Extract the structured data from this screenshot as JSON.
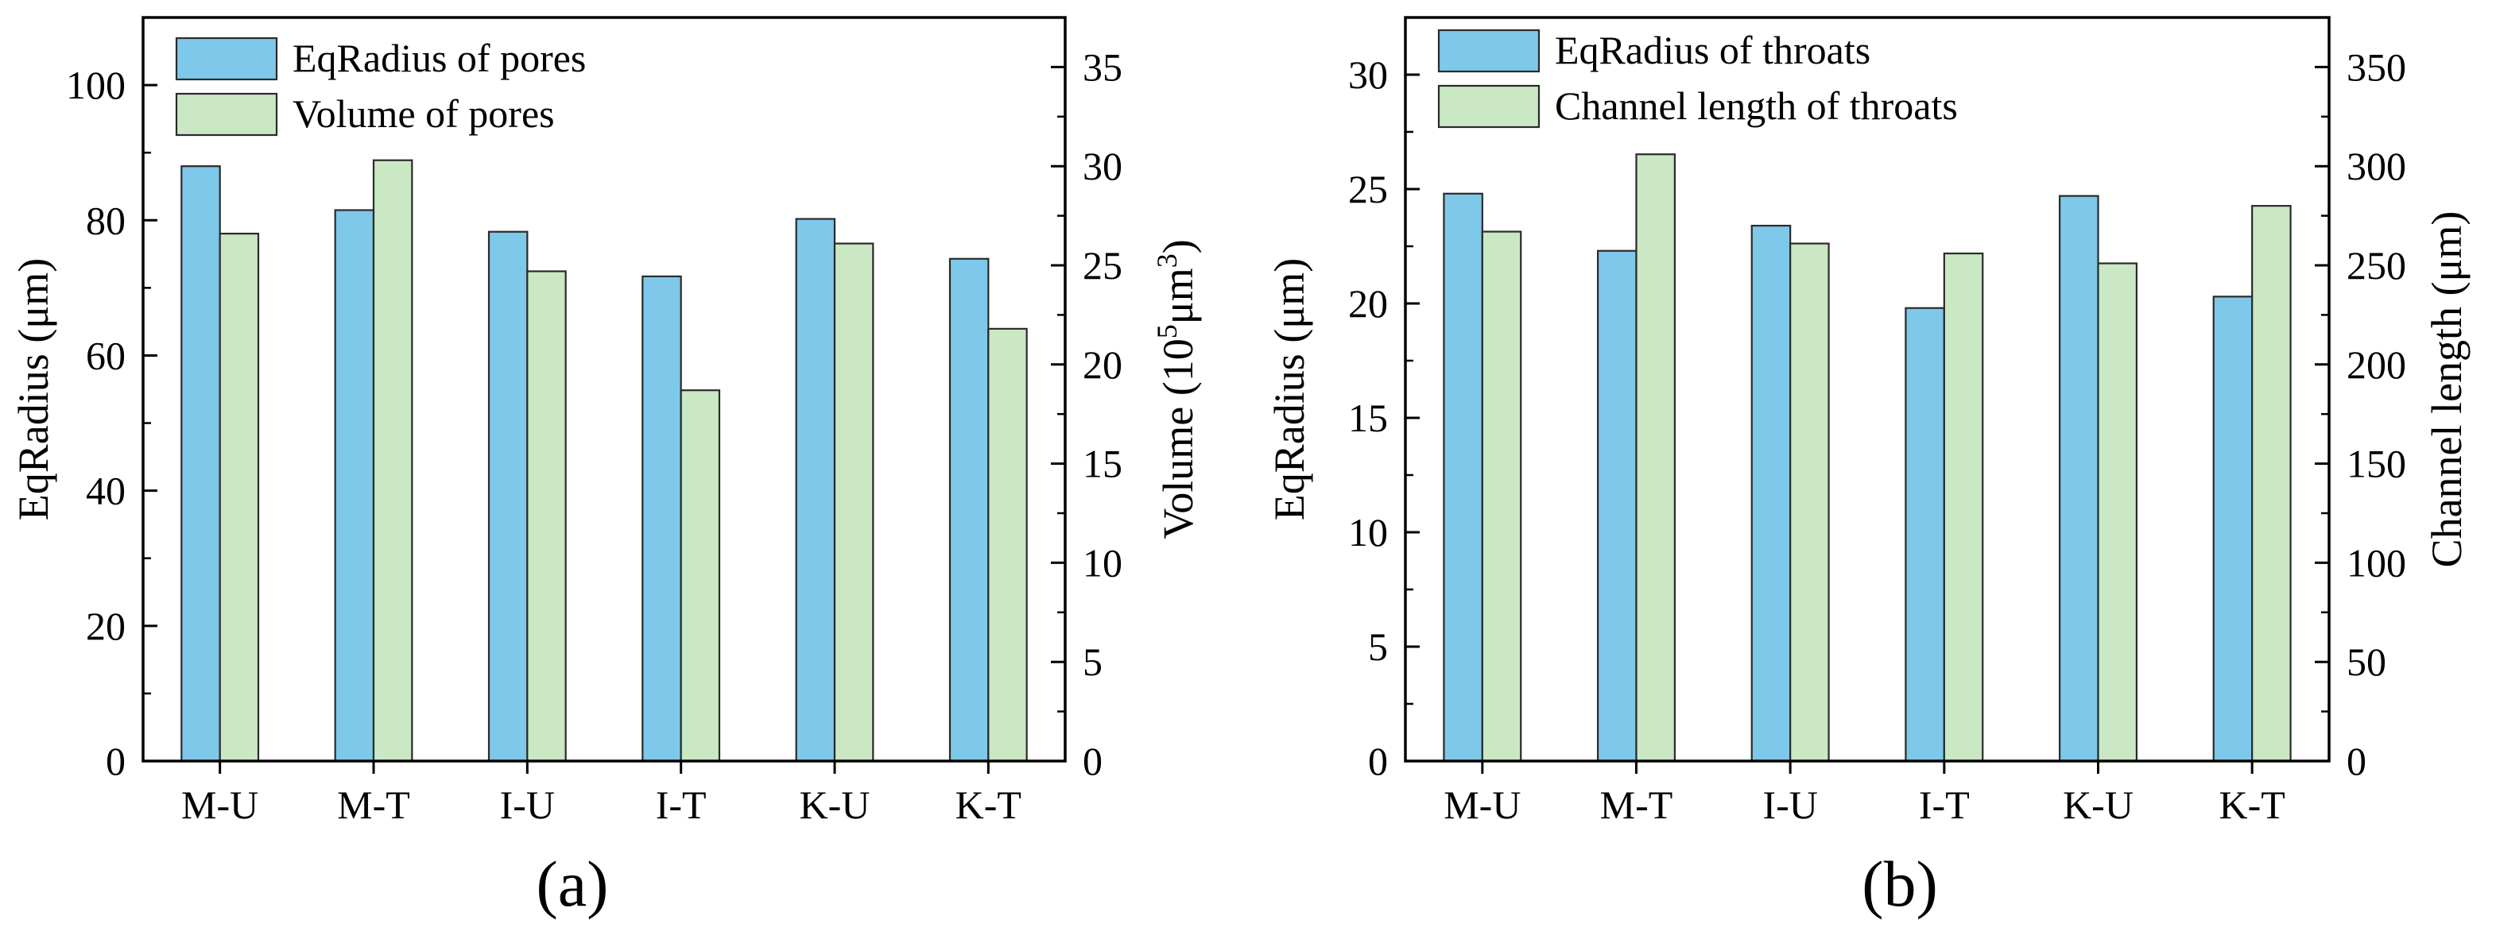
{
  "colors": {
    "series1": "#7ec8ea",
    "series2": "#c9e8c3",
    "stroke": "#2a2a2a"
  },
  "chart_data": [
    {
      "type": "bar",
      "panel_label": "(a)",
      "categories": [
        "M-U",
        "M-T",
        "I-U",
        "I-T",
        "K-U",
        "K-T"
      ],
      "series": [
        {
          "name": "EqRadius of pores",
          "axis": "left",
          "values": [
            88,
            81.5,
            78.3,
            71.7,
            80.2,
            74.3
          ]
        },
        {
          "name": "Volume of pores",
          "axis": "right",
          "values": [
            26.6,
            30.3,
            24.7,
            18.7,
            26.1,
            21.8
          ]
        }
      ],
      "ylabel_left": "EqRadius (μm)",
      "ylabel_right": {
        "prefix": "Volume (10",
        "sup1": "5",
        "mid": "μm",
        "sup2": "3",
        "suffix": ")"
      },
      "ylim_left": [
        0,
        110
      ],
      "yticks_left": [
        0,
        20,
        40,
        60,
        80,
        100
      ],
      "ylim_right": [
        0,
        37.5
      ],
      "yticks_right": [
        0,
        5,
        10,
        15,
        20,
        25,
        30,
        35
      ],
      "legend_position": "top-left"
    },
    {
      "type": "bar",
      "panel_label": "(b)",
      "categories": [
        "M-U",
        "M-T",
        "I-U",
        "I-T",
        "K-U",
        "K-T"
      ],
      "series": [
        {
          "name": "EqRadius of throats",
          "axis": "left",
          "values": [
            24.8,
            22.3,
            23.4,
            19.8,
            24.7,
            20.3
          ]
        },
        {
          "name": "Channel length of throats",
          "axis": "right",
          "values": [
            267,
            306,
            261,
            256,
            251,
            280
          ]
        }
      ],
      "ylabel_left": "EqRadius (μm)",
      "ylabel_right": "Channel length (μm)",
      "ylim_left": [
        0,
        32.5
      ],
      "yticks_left": [
        0,
        5,
        10,
        15,
        20,
        25,
        30
      ],
      "ylim_right": [
        0,
        375
      ],
      "yticks_right": [
        0,
        50,
        100,
        150,
        200,
        250,
        300,
        350
      ],
      "legend_position": "top-left"
    }
  ]
}
